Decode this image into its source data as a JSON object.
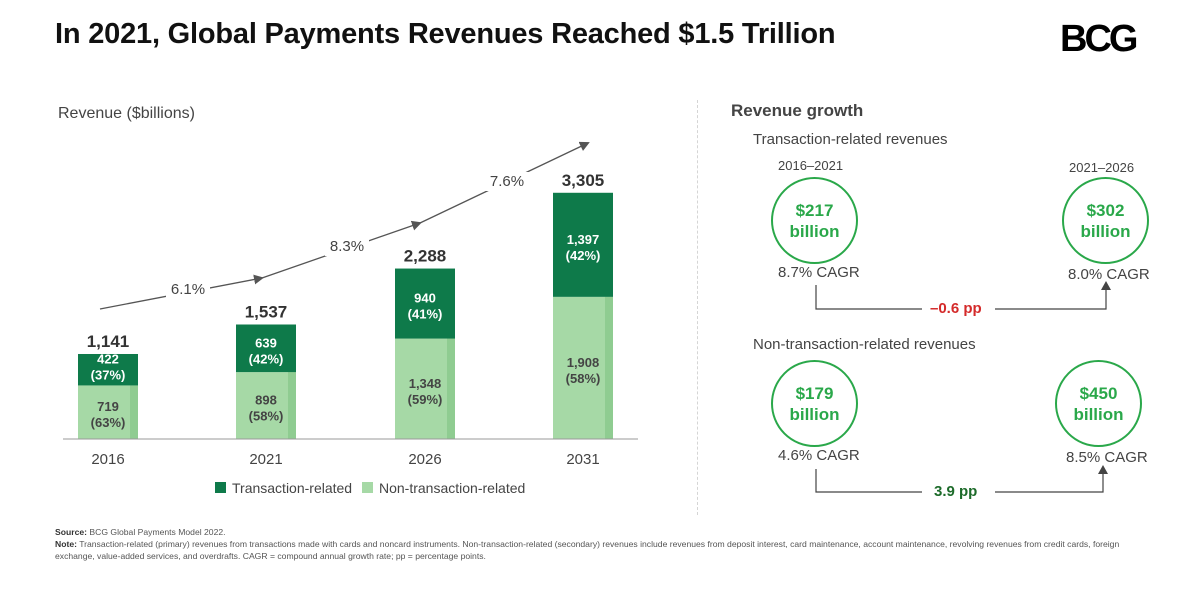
{
  "title": "In 2021, Global Payments Revenues Reached $1.5 Trillion",
  "logo": "BCG",
  "chart_data": {
    "type": "bar",
    "stacked": true,
    "ylabel": "Revenue ($billions)",
    "categories": [
      "2016",
      "2021",
      "2026",
      "2031"
    ],
    "totals": [
      "1,141",
      "1,537",
      "2,288",
      "3,305"
    ],
    "series": [
      {
        "name": "Transaction-related",
        "color": "#0e7a4a",
        "values": [
          422,
          639,
          940,
          1397
        ],
        "labels": [
          "422",
          "639",
          "940",
          "1,397"
        ],
        "shares": [
          "(37%)",
          "(42%)",
          "(41%)",
          "(42%)"
        ]
      },
      {
        "name": "Non-transaction-related",
        "color": "#a6d9a6",
        "values": [
          719,
          898,
          1348,
          1908
        ],
        "labels": [
          "719",
          "898",
          "1,348",
          "1,908"
        ],
        "shares": [
          "(63%)",
          "(58%)",
          "(59%)",
          "(58%)"
        ]
      }
    ],
    "growth_labels": [
      "6.1%",
      "8.3%",
      "7.6%"
    ],
    "legend": "bottom"
  },
  "growth": {
    "heading": "Revenue growth",
    "transaction": {
      "title": "Transaction-related revenues",
      "period_left": "2016–2021",
      "period_right": "2021–2026",
      "left_line1": "$217",
      "left_line2": "billion",
      "right_line1": "$302",
      "right_line2": "billion",
      "left_cagr": "8.7% CAGR",
      "right_cagr": "8.0% CAGR",
      "delta": "–0.6 pp",
      "delta_color": "#d42a2a"
    },
    "nontransaction": {
      "title": "Non-transaction-related revenues",
      "left_line1": "$179",
      "left_line2": "billion",
      "right_line1": "$450",
      "right_line2": "billion",
      "left_cagr": "4.6% CAGR",
      "right_cagr": "8.5% CAGR",
      "delta": "3.9 pp",
      "delta_color": "#1d6b2a"
    }
  },
  "footnotes": {
    "source_label": "Source:",
    "source_text": "BCG Global Payments Model 2022.",
    "note_label": "Note:",
    "note_text": "Transaction-related (primary) revenues from transactions made with cards and noncard instruments. Non-transaction-related (secondary) revenues include revenues from deposit interest, card maintenance, account maintenance, revolving revenues from credit cards, foreign exchange, value-added services, and overdrafts. CAGR = compound annual growth rate; pp = percentage points."
  }
}
